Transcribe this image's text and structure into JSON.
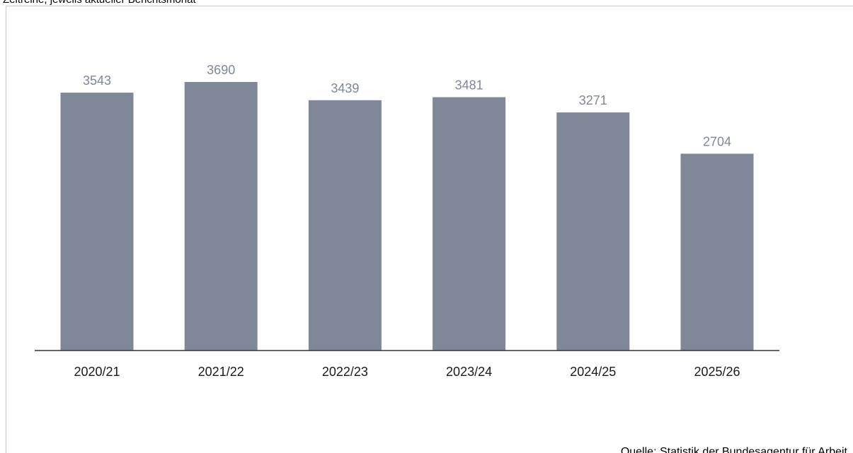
{
  "subtitle": "Zeitreihe, jeweils aktueller Berichtsmonat",
  "source": "Quelle: Statistik der Bundesagentur für Arbeit",
  "chart_data": {
    "type": "bar",
    "categories": [
      "2020/21",
      "2021/22",
      "2022/23",
      "2023/24",
      "2024/25",
      "2025/26"
    ],
    "values": [
      3543,
      3690,
      3439,
      3481,
      3271,
      2704
    ],
    "title": "",
    "xlabel": "",
    "ylabel": "",
    "ylim": [
      0,
      3800
    ],
    "grid": false,
    "legend": "none",
    "bar_color": "#7f8798",
    "label_color": "#7f8798",
    "axis_color": "#333333"
  }
}
